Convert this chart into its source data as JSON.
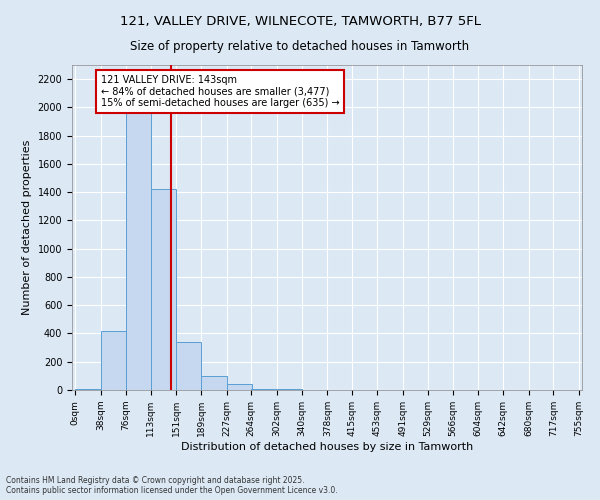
{
  "title_line1": "121, VALLEY DRIVE, WILNECOTE, TAMWORTH, B77 5FL",
  "title_line2": "Size of property relative to detached houses in Tamworth",
  "xlabel": "Distribution of detached houses by size in Tamworth",
  "ylabel": "Number of detached properties",
  "bar_left_edges": [
    0,
    38,
    76,
    113,
    151,
    189,
    227,
    264,
    302,
    340,
    378,
    415,
    453,
    491,
    529,
    566,
    604,
    642,
    680,
    717
  ],
  "bar_heights": [
    5,
    420,
    2050,
    1420,
    340,
    100,
    40,
    10,
    4,
    2,
    1,
    0,
    0,
    0,
    0,
    0,
    0,
    0,
    0,
    0
  ],
  "bin_width": 38,
  "bar_color": "#c5d8f0",
  "bar_edge_color": "#5a9fd4",
  "property_line_x": 143,
  "property_line_color": "#cc0000",
  "annotation_text": "121 VALLEY DRIVE: 143sqm\n← 84% of detached houses are smaller (3,477)\n15% of semi-detached houses are larger (635) →",
  "annotation_box_color": "#cc0000",
  "annotation_text_color": "#000000",
  "ylim": [
    0,
    2300
  ],
  "tick_labels": [
    "0sqm",
    "38sqm",
    "76sqm",
    "113sqm",
    "151sqm",
    "189sqm",
    "227sqm",
    "264sqm",
    "302sqm",
    "340sqm",
    "378sqm",
    "415sqm",
    "453sqm",
    "491sqm",
    "529sqm",
    "566sqm",
    "604sqm",
    "642sqm",
    "680sqm",
    "717sqm",
    "755sqm"
  ],
  "background_color": "#dce9f5",
  "plot_bg_color": "#dce9f5",
  "grid_color": "#ffffff",
  "footer_line1": "Contains HM Land Registry data © Crown copyright and database right 2025.",
  "footer_line2": "Contains public sector information licensed under the Open Government Licence v3.0.",
  "yticks": [
    0,
    200,
    400,
    600,
    800,
    1000,
    1200,
    1400,
    1600,
    1800,
    2000,
    2200
  ],
  "xlim_min": -5,
  "xlim_max": 760
}
